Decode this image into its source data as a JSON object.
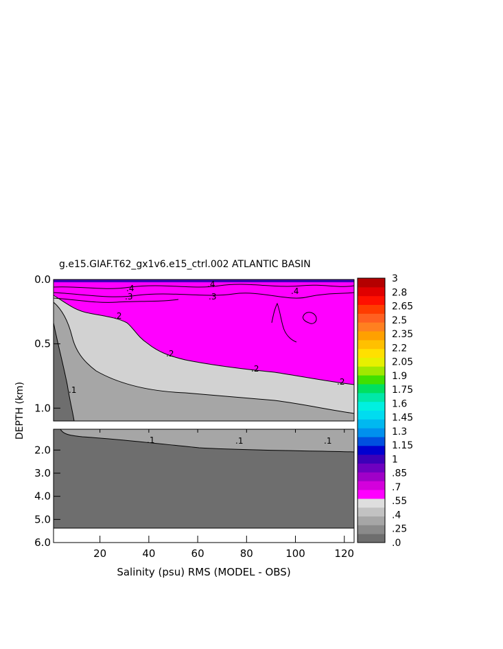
{
  "chart_data": {
    "type": "heatmap",
    "title": "g.e15.GIAF.T62_gx1v6.e15_ctrl.002 ATLANTIC BASIN",
    "xlabel": "Salinity (psu) RMS (MODEL - OBS)",
    "ylabel": "DEPTH (km)",
    "xlim": [
      1,
      124
    ],
    "x_ticks": [
      "20",
      "40",
      "60",
      "80",
      "100",
      "120"
    ],
    "upper_panel": {
      "ylim": [
        0.0,
        1.1
      ],
      "y_ticks": [
        "0.0",
        "0.5",
        "1.0"
      ]
    },
    "lower_panel": {
      "ylim": [
        1.1,
        6.0
      ],
      "y_ticks": [
        "2.0",
        "3.0",
        "4.0",
        "5.0",
        "6.0"
      ]
    },
    "colorbar": {
      "range": [
        0,
        3
      ],
      "tick_labels": [
        "3",
        "2.8",
        "2.65",
        "2.5",
        "2.35",
        "2.2",
        "2.05",
        "1.9",
        "1.75",
        "1.6",
        "1.45",
        "1.3",
        "1.15",
        "1",
        ".85",
        ".7",
        ".55",
        ".4",
        ".25",
        ".0"
      ],
      "colors_low_to_high": [
        "#6e6e6e",
        "#8a8a8a",
        "#a6a6a6",
        "#c2c2c2",
        "#dedede",
        "#ff00ff",
        "#d400dc",
        "#a000c8",
        "#6e00c0",
        "#3c00b8",
        "#0000d0",
        "#0050e0",
        "#0090ee",
        "#00b8f0",
        "#00dcf0",
        "#00f0e0",
        "#00e8a8",
        "#00e060",
        "#40e000",
        "#a0e800",
        "#e6f000",
        "#ffe000",
        "#ffc000",
        "#ffa000",
        "#ff8020",
        "#ff6020",
        "#ff3c00",
        "#ff1000",
        "#e00000",
        "#b40000"
      ]
    },
    "contour_labels": [
      ".2",
      ".2",
      ".2",
      ".2",
      ".3",
      ".3",
      ".4",
      ".4",
      ".4",
      ".1",
      ".1",
      ".1",
      ".1"
    ],
    "regions": [
      {
        "range": "0.0 - 0.1",
        "color": "#6e6e6e"
      },
      {
        "range": "0.1 - 0.2",
        "color": "#a6a6a6"
      },
      {
        "range": "0.2 - 0.25",
        "color": "#d2d2d2"
      },
      {
        "range": "0.25 - 0.3",
        "color": "#ff00ff"
      },
      {
        "range": "> 0.3 (surface)",
        "color": "#d400dc"
      }
    ]
  }
}
